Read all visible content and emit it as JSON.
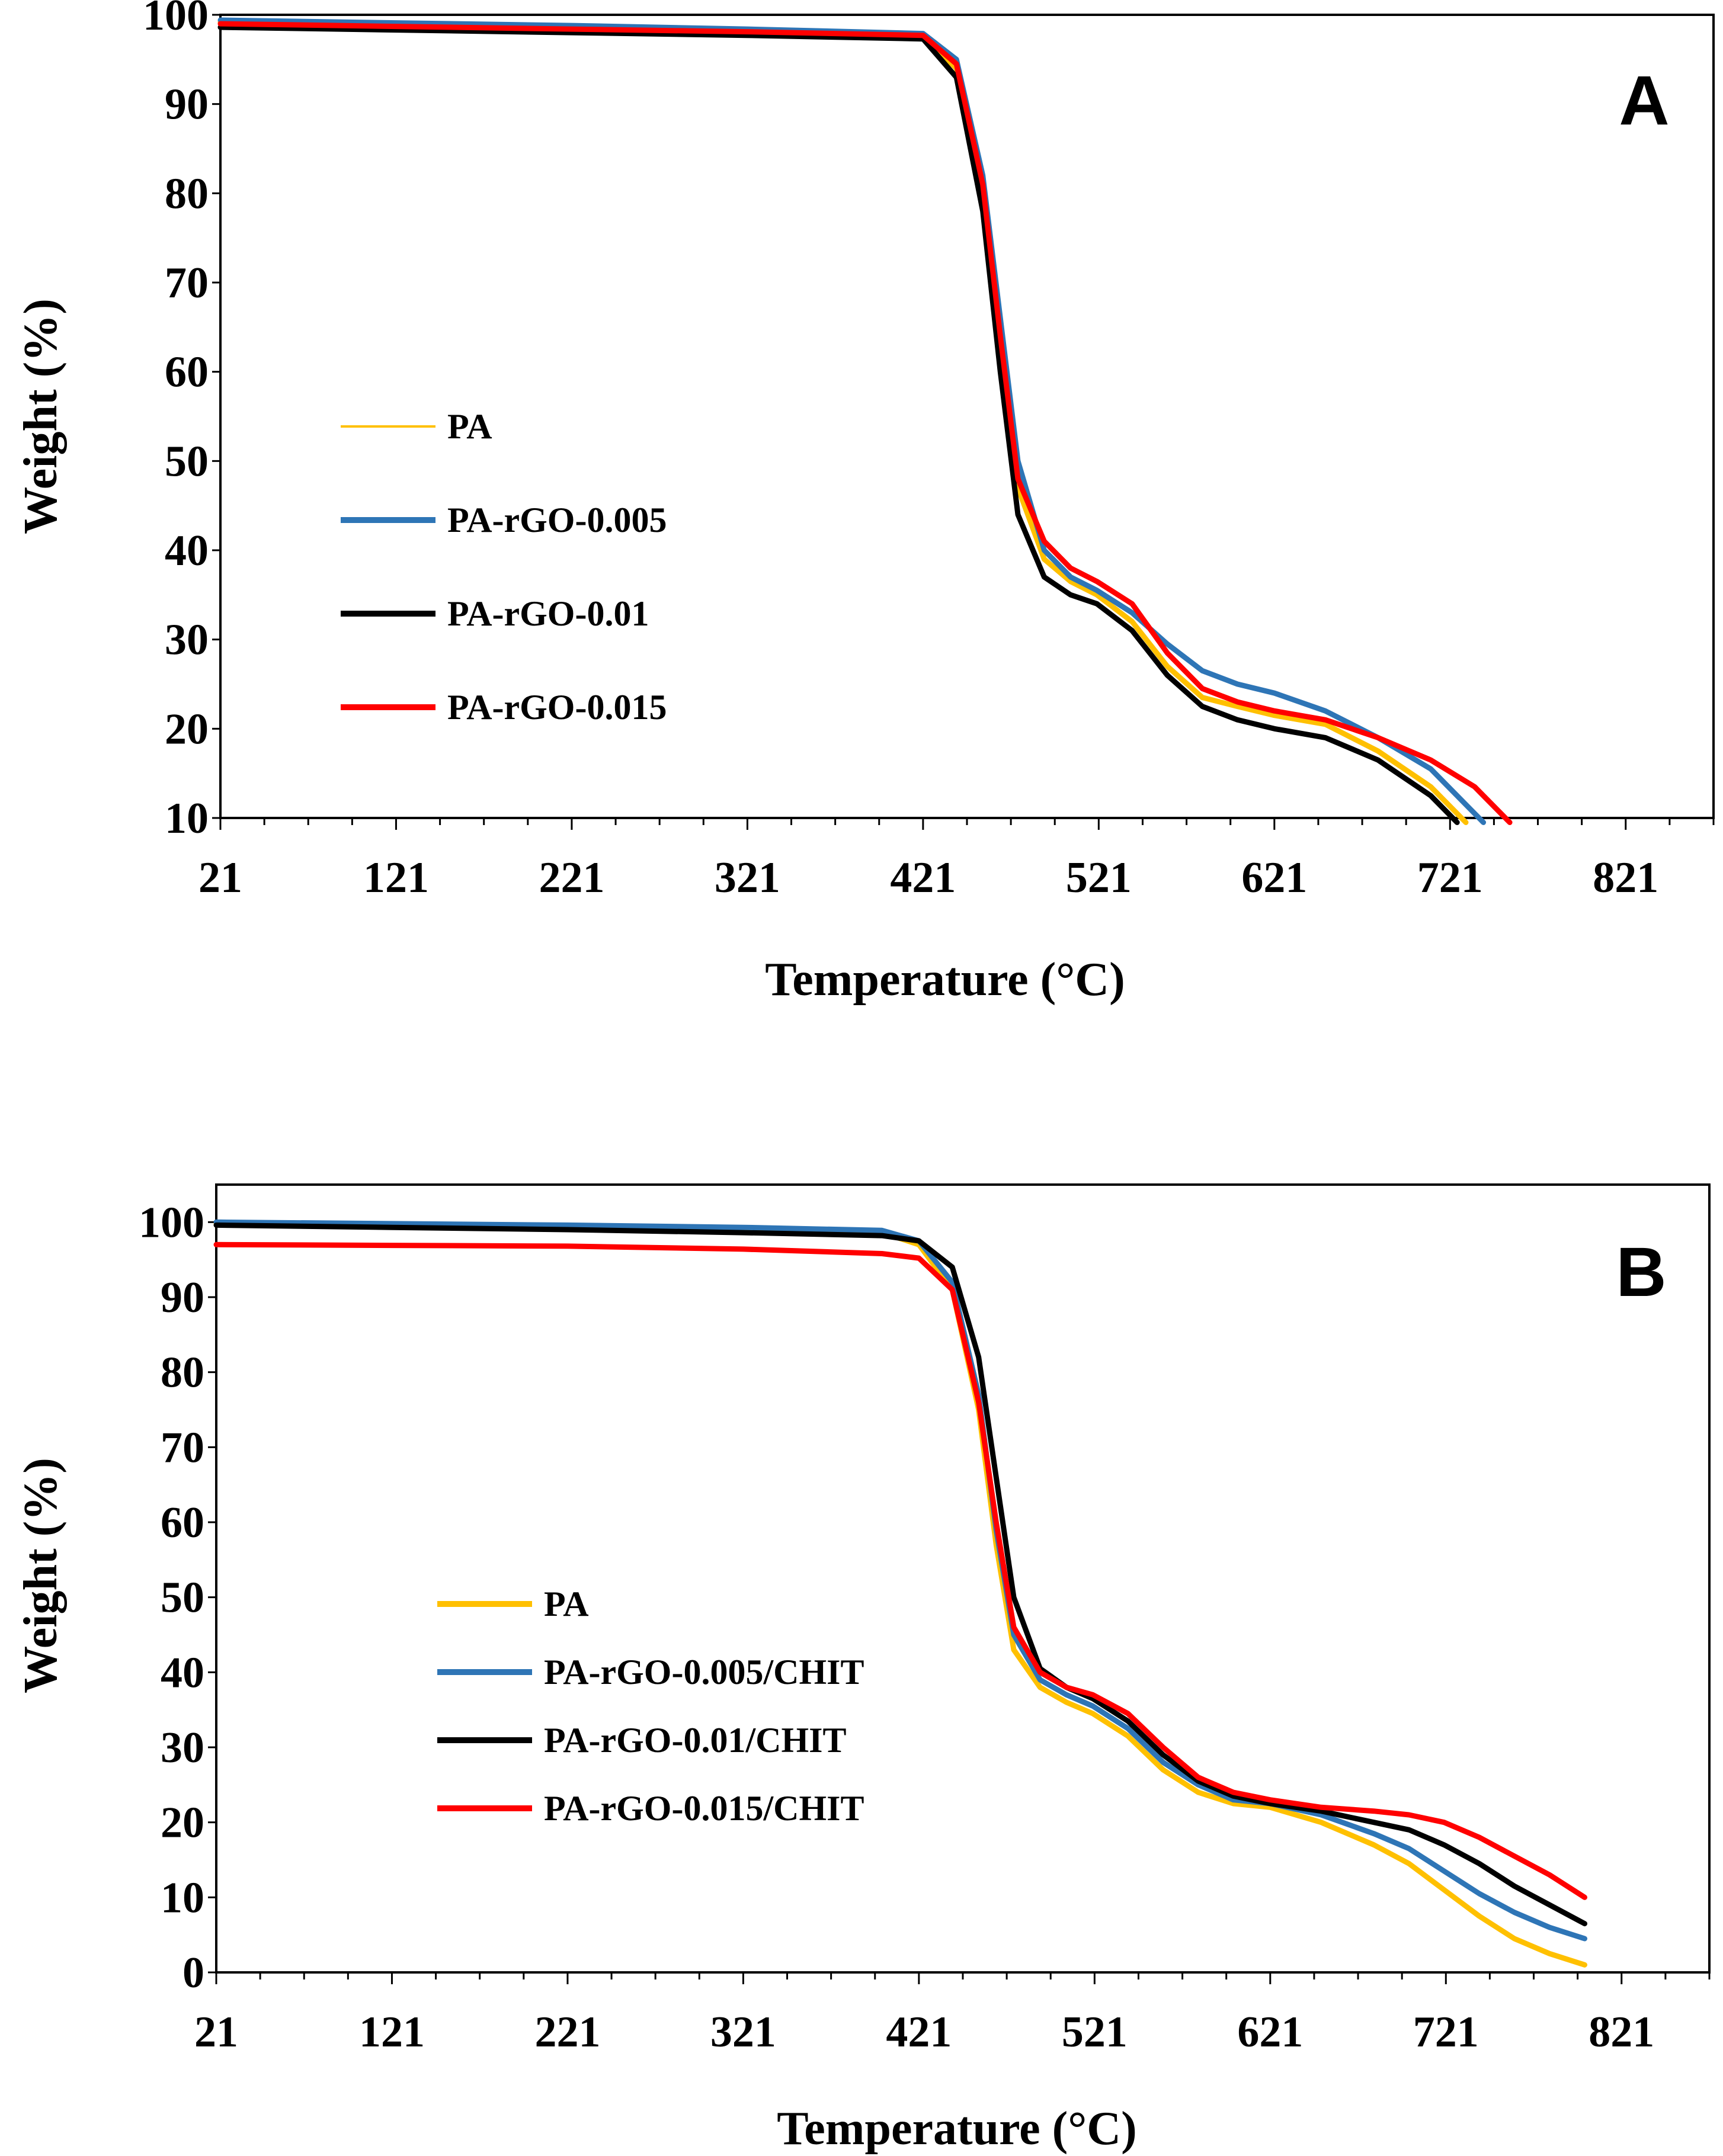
{
  "chart_data": [
    {
      "type": "line",
      "panel_label": "A",
      "xlabel": "Temperature (°C)",
      "ylabel": "Weight  (%)",
      "xlim": [
        21,
        871
      ],
      "ylim": [
        10,
        100
      ],
      "xticks": [
        "21",
        "121",
        "221",
        "321",
        "421",
        "521",
        "621",
        "721",
        "821"
      ],
      "yticks": [
        "10",
        "20",
        "30",
        "40",
        "50",
        "60",
        "70",
        "80",
        "90",
        "100"
      ],
      "grid": false,
      "legend_position": "left-middle",
      "series": [
        {
          "name": "PA",
          "color": "#FFC000",
          "x": [
            21,
            121,
            221,
            321,
            421,
            440,
            455,
            465,
            475,
            490,
            505,
            520,
            540,
            560,
            580,
            600,
            621,
            650,
            680,
            710,
            730
          ],
          "y": [
            99.2,
            98.9,
            98.6,
            98.2,
            97.6,
            94,
            80,
            63,
            47,
            39,
            36.5,
            35,
            32,
            27,
            23.5,
            22.5,
            21.5,
            20.5,
            17.5,
            13.5,
            9.5
          ]
        },
        {
          "name": "PA-rGO-0.005",
          "color": "#2E75B6",
          "x": [
            21,
            121,
            221,
            321,
            421,
            440,
            455,
            465,
            475,
            490,
            505,
            520,
            540,
            560,
            580,
            600,
            621,
            650,
            680,
            710,
            740
          ],
          "y": [
            99.4,
            99.1,
            98.8,
            98.4,
            97.9,
            95,
            82,
            66,
            50,
            40,
            37,
            35.5,
            33,
            29.5,
            26.5,
            25,
            24,
            22,
            19,
            15.5,
            9.5
          ]
        },
        {
          "name": "PA-rGO-0.01",
          "color": "#000000",
          "x": [
            21,
            121,
            221,
            321,
            421,
            440,
            455,
            465,
            475,
            490,
            505,
            520,
            540,
            560,
            580,
            600,
            621,
            650,
            680,
            710,
            725
          ],
          "y": [
            98.6,
            98.3,
            98.0,
            97.7,
            97.3,
            93,
            78,
            60,
            44,
            37,
            35,
            34,
            31,
            26,
            22.5,
            21,
            20,
            19,
            16.5,
            12.5,
            9.5
          ]
        },
        {
          "name": "PA-rGO-0.015",
          "color": "#FF0000",
          "x": [
            21,
            121,
            221,
            321,
            421,
            440,
            455,
            465,
            475,
            490,
            505,
            520,
            540,
            560,
            580,
            600,
            621,
            650,
            680,
            710,
            735,
            755
          ],
          "y": [
            99.0,
            98.7,
            98.4,
            98.1,
            97.7,
            94.5,
            81,
            64,
            48,
            41,
            38,
            36.5,
            34,
            28.5,
            24.5,
            23,
            22,
            21,
            19,
            16.5,
            13.5,
            9.5
          ]
        }
      ]
    },
    {
      "type": "line",
      "panel_label": "B",
      "xlabel": "Temperature (°C)",
      "ylabel": "Weight (%)",
      "xlim": [
        21,
        871
      ],
      "ylim": [
        0,
        105
      ],
      "xticks": [
        "21",
        "121",
        "221",
        "321",
        "421",
        "521",
        "621",
        "721",
        "821"
      ],
      "yticks": [
        "0",
        "10",
        "20",
        "30",
        "40",
        "50",
        "60",
        "70",
        "80",
        "90",
        "100"
      ],
      "grid": false,
      "legend_position": "left-lower",
      "series": [
        {
          "name": "PA",
          "color": "#FFC000",
          "x": [
            21,
            121,
            221,
            321,
            400,
            421,
            440,
            455,
            465,
            475,
            490,
            505,
            520,
            540,
            560,
            580,
            600,
            621,
            650,
            680,
            700,
            720,
            740,
            760,
            780,
            800
          ],
          "y": [
            99.8,
            99.6,
            99.4,
            99.1,
            98.6,
            97,
            91,
            75,
            57,
            43,
            38,
            36,
            34.5,
            31.5,
            27,
            24,
            22.5,
            22,
            20,
            17,
            14.5,
            11,
            7.5,
            4.5,
            2.5,
            1
          ]
        },
        {
          "name": "PA-rGO-0.005/CHIT",
          "color": "#2E75B6",
          "x": [
            21,
            121,
            221,
            321,
            400,
            421,
            440,
            455,
            465,
            475,
            490,
            505,
            520,
            540,
            560,
            580,
            600,
            621,
            650,
            680,
            700,
            720,
            740,
            760,
            780,
            800
          ],
          "y": [
            100,
            99.8,
            99.6,
            99.3,
            98.9,
            97.5,
            92,
            77,
            59,
            45,
            39,
            37,
            35.5,
            32.5,
            28,
            25,
            23,
            22.5,
            21,
            18.5,
            16.5,
            13.5,
            10.5,
            8,
            6,
            4.5
          ]
        },
        {
          "name": "PA-rGO-0.01/CHIT",
          "color": "#000000",
          "x": [
            21,
            121,
            221,
            321,
            400,
            421,
            440,
            455,
            465,
            475,
            490,
            505,
            520,
            540,
            560,
            580,
            600,
            621,
            650,
            680,
            700,
            720,
            740,
            760,
            780,
            800
          ],
          "y": [
            99.6,
            99.3,
            99.0,
            98.6,
            98.2,
            97.5,
            94,
            82,
            66,
            50,
            40.5,
            38,
            36.5,
            33.5,
            29,
            25.5,
            23.5,
            22.5,
            21.5,
            20,
            19,
            17,
            14.5,
            11.5,
            9,
            6.5
          ]
        },
        {
          "name": "PA-rGO-0.015/CHIT",
          "color": "#FF0000",
          "x": [
            21,
            121,
            221,
            321,
            400,
            421,
            440,
            455,
            465,
            475,
            490,
            505,
            520,
            540,
            560,
            580,
            600,
            621,
            650,
            680,
            700,
            720,
            740,
            760,
            780,
            800
          ],
          "y": [
            97,
            96.9,
            96.8,
            96.4,
            95.8,
            95.2,
            91,
            76,
            60,
            46,
            40,
            38,
            37,
            34.5,
            30,
            26,
            24,
            23,
            22,
            21.5,
            21,
            20,
            18,
            15.5,
            13,
            10
          ]
        }
      ]
    }
  ]
}
